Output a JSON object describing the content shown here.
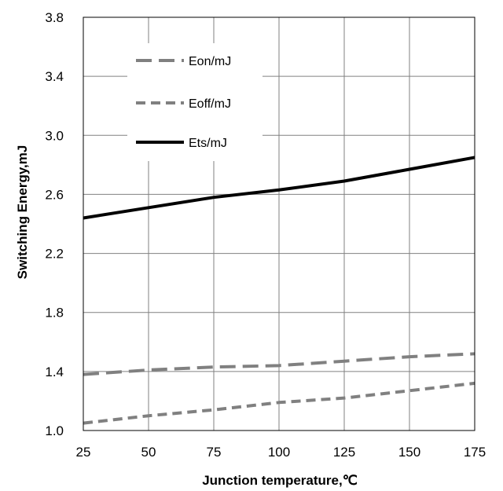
{
  "chart_data": {
    "type": "line",
    "xlabel": "Junction temperature,℃",
    "ylabel": "Switching Energy,mJ",
    "xlim": [
      25,
      175
    ],
    "ylim": [
      1.0,
      3.8
    ],
    "xticks": [
      25,
      50,
      75,
      100,
      125,
      150,
      175
    ],
    "yticks": [
      1.0,
      1.4,
      1.8,
      2.2,
      2.6,
      3.0,
      3.4,
      3.8
    ],
    "ytick_labels": [
      "1.0",
      "1.4",
      "1.8",
      "2.2",
      "2.6",
      "3.0",
      "3.4",
      "3.8"
    ],
    "grid": true,
    "legend_position": "top-left",
    "x": [
      25,
      50,
      75,
      100,
      125,
      150,
      175
    ],
    "series": [
      {
        "name": "Eon/mJ",
        "values": [
          1.38,
          1.41,
          1.43,
          1.44,
          1.47,
          1.5,
          1.52
        ],
        "color": "#808080",
        "style": "long-dash"
      },
      {
        "name": "Eoff/mJ",
        "values": [
          1.05,
          1.1,
          1.14,
          1.19,
          1.22,
          1.27,
          1.32
        ],
        "color": "#808080",
        "style": "short-dash"
      },
      {
        "name": "Ets/mJ",
        "values": [
          2.44,
          2.51,
          2.58,
          2.63,
          2.69,
          2.77,
          2.85
        ],
        "color": "#000000",
        "style": "solid"
      }
    ]
  }
}
